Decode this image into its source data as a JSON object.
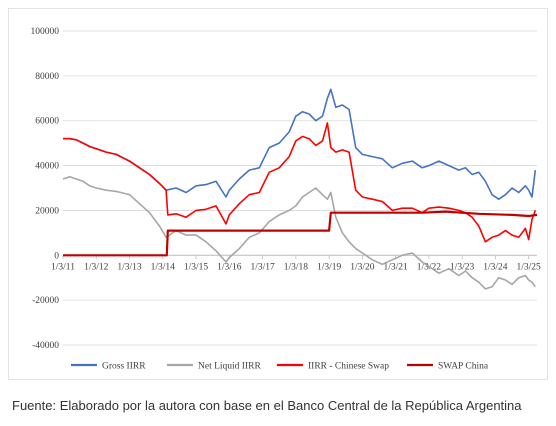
{
  "caption": "Fuente: Elaborado por la autora con base en el Banco Central de la República Argentina",
  "chart_data": {
    "type": "line",
    "title": "",
    "xlabel": "",
    "ylabel": "",
    "ylim": [
      -40000,
      100000
    ],
    "yticks": [
      -40000,
      -20000,
      0,
      20000,
      40000,
      60000,
      80000,
      100000
    ],
    "ytick_labels": [
      "-40000",
      "-20000",
      "0",
      "20000",
      "40000",
      "60000",
      "80000",
      "100000"
    ],
    "xlim": [
      2011.0,
      2025.25
    ],
    "xticks": [
      2011,
      2012,
      2013,
      2014,
      2015,
      2016,
      2017,
      2018,
      2019,
      2020,
      2021,
      2022,
      2023,
      2024,
      2025
    ],
    "xtick_labels": [
      "1/3/11",
      "1/3/12",
      "1/3/13",
      "1/3/14",
      "1/3/15",
      "1/3/16",
      "1/3/17",
      "1/3/18",
      "1/3/19",
      "1/3/20",
      "1/3/21",
      "1/3/22",
      "1/3/23",
      "1/3/24",
      "1/3/25"
    ],
    "grid": "horizontal",
    "legend_position": "bottom",
    "series": [
      {
        "name": "Gross IIRR",
        "color": "#4472c4",
        "x": [
          2011.0,
          2011.2,
          2011.4,
          2011.6,
          2011.8,
          2012.0,
          2012.3,
          2012.6,
          2013.0,
          2013.3,
          2013.6,
          2013.9,
          2014.1,
          2014.4,
          2014.7,
          2015.0,
          2015.3,
          2015.6,
          2015.9,
          2016.0,
          2016.3,
          2016.6,
          2016.9,
          2017.2,
          2017.5,
          2017.8,
          2018.0,
          2018.2,
          2018.4,
          2018.6,
          2018.8,
          2018.95,
          2019.05,
          2019.2,
          2019.4,
          2019.6,
          2019.8,
          2020.0,
          2020.3,
          2020.6,
          2020.9,
          2021.2,
          2021.5,
          2021.8,
          2022.0,
          2022.3,
          2022.6,
          2022.9,
          2023.1,
          2023.3,
          2023.5,
          2023.7,
          2023.9,
          2024.1,
          2024.3,
          2024.5,
          2024.7,
          2024.9,
          2025.0,
          2025.1,
          2025.2
        ],
        "y": [
          52000,
          52000,
          51500,
          50000,
          48500,
          47500,
          46000,
          45000,
          42000,
          39000,
          36000,
          32000,
          29000,
          30000,
          28000,
          31000,
          31500,
          33000,
          26000,
          29000,
          34000,
          38000,
          39000,
          48000,
          50000,
          55000,
          62000,
          64000,
          63000,
          60000,
          62000,
          70000,
          74000,
          66000,
          67000,
          65000,
          48000,
          45000,
          44000,
          43000,
          39000,
          41000,
          42000,
          39000,
          40000,
          42000,
          40000,
          38000,
          39000,
          36000,
          37000,
          33000,
          27000,
          25000,
          27000,
          30000,
          28000,
          31000,
          29000,
          26000,
          38000
        ]
      },
      {
        "name": "Net Liquid IIRR",
        "color": "#a6a6a6",
        "x": [
          2011.0,
          2011.2,
          2011.4,
          2011.6,
          2011.8,
          2012.0,
          2012.3,
          2012.6,
          2013.0,
          2013.3,
          2013.6,
          2013.9,
          2014.1,
          2014.4,
          2014.7,
          2015.0,
          2015.3,
          2015.6,
          2015.9,
          2016.0,
          2016.3,
          2016.6,
          2016.9,
          2017.2,
          2017.5,
          2017.8,
          2018.0,
          2018.2,
          2018.4,
          2018.6,
          2018.8,
          2018.95,
          2019.05,
          2019.2,
          2019.4,
          2019.6,
          2019.8,
          2020.0,
          2020.3,
          2020.6,
          2020.9,
          2021.2,
          2021.5,
          2021.8,
          2022.0,
          2022.3,
          2022.6,
          2022.9,
          2023.1,
          2023.3,
          2023.5,
          2023.7,
          2023.9,
          2024.1,
          2024.3,
          2024.5,
          2024.7,
          2024.9,
          2025.0,
          2025.1,
          2025.2
        ],
        "y": [
          34000,
          35000,
          34000,
          33000,
          31000,
          30000,
          29000,
          28500,
          27000,
          23000,
          19000,
          13000,
          8000,
          11000,
          9000,
          9000,
          6000,
          2000,
          -3000,
          -1000,
          3000,
          8000,
          10000,
          15000,
          18000,
          20000,
          22000,
          26000,
          28000,
          30000,
          27000,
          25000,
          28000,
          17000,
          10000,
          6000,
          3000,
          1000,
          -2000,
          -4000,
          -2000,
          0,
          1000,
          -3000,
          -5000,
          -8000,
          -6000,
          -9000,
          -7000,
          -10000,
          -12000,
          -15000,
          -14000,
          -10000,
          -11000,
          -13000,
          -10000,
          -9000,
          -11000,
          -12000,
          -14000
        ]
      },
      {
        "name": "IIRR - Chinese Swap",
        "color": "#ff0000",
        "x": [
          2011.0,
          2011.2,
          2011.4,
          2011.6,
          2011.8,
          2012.0,
          2012.3,
          2012.6,
          2013.0,
          2013.3,
          2013.6,
          2013.9,
          2014.1,
          2014.15,
          2014.4,
          2014.7,
          2015.0,
          2015.3,
          2015.6,
          2015.9,
          2016.0,
          2016.3,
          2016.6,
          2016.9,
          2017.2,
          2017.5,
          2017.8,
          2018.0,
          2018.2,
          2018.4,
          2018.6,
          2018.8,
          2018.95,
          2019.05,
          2019.2,
          2019.4,
          2019.6,
          2019.8,
          2020.0,
          2020.3,
          2020.6,
          2020.9,
          2021.2,
          2021.5,
          2021.8,
          2022.0,
          2022.3,
          2022.6,
          2022.9,
          2023.1,
          2023.3,
          2023.5,
          2023.7,
          2023.9,
          2024.1,
          2024.3,
          2024.5,
          2024.7,
          2024.9,
          2025.0,
          2025.1,
          2025.2
        ],
        "y": [
          52000,
          52000,
          51500,
          50000,
          48500,
          47500,
          46000,
          45000,
          42000,
          39000,
          36000,
          32000,
          29000,
          18000,
          18500,
          17000,
          20000,
          20500,
          22000,
          14000,
          18000,
          23000,
          27000,
          28000,
          37000,
          39000,
          44000,
          51000,
          53000,
          52000,
          49000,
          51000,
          59000,
          48000,
          46000,
          47000,
          46000,
          29000,
          26000,
          25000,
          24000,
          20000,
          21000,
          21000,
          19000,
          21000,
          21500,
          21000,
          20000,
          19000,
          17000,
          13000,
          6000,
          8000,
          9000,
          11000,
          9000,
          8000,
          12000,
          7000,
          16000,
          20000
        ]
      },
      {
        "name": "SWAP China",
        "color": "#c00000",
        "x": [
          2011.0,
          2014.12,
          2014.15,
          2019.0,
          2019.05,
          2021.8,
          2022.5,
          2023.5,
          2024.5,
          2025.0,
          2025.25
        ],
        "y": [
          0,
          0,
          11000,
          11000,
          19000,
          19000,
          19500,
          18500,
          18000,
          17500,
          18000
        ]
      }
    ]
  }
}
